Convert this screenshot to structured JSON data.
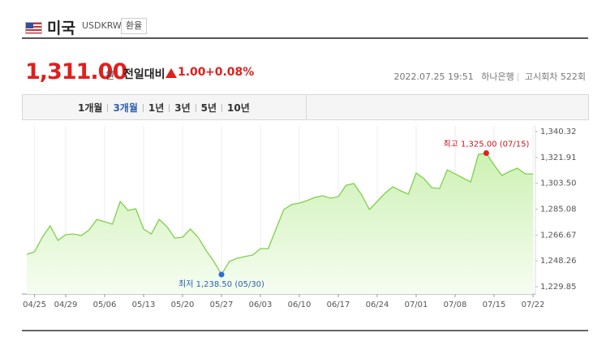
{
  "header": {
    "title": "미국",
    "code": "USDKRW",
    "button": "환율"
  },
  "quote": {
    "price": "1,311.00",
    "unit": "원",
    "change_label": "전일대비",
    "change": "1.00",
    "change_percent": "+0.08%",
    "timestamp": "2022.07.25 19:51",
    "bank": "하나은행",
    "round": "고시회차 522회"
  },
  "tabs": {
    "items": [
      "1개월",
      "3개월",
      "1년",
      "3년",
      "5년",
      "10년"
    ],
    "active": 1
  },
  "chart_data": {
    "type": "area",
    "color": "#7fd04c",
    "categories": [
      null,
      "04/25",
      null,
      null,
      null,
      "04/29",
      null,
      null,
      null,
      null,
      "05/06",
      null,
      null,
      null,
      null,
      "05/13",
      null,
      null,
      null,
      null,
      "05/20",
      null,
      null,
      null,
      null,
      "05/27",
      null,
      null,
      null,
      null,
      "06/03",
      null,
      null,
      null,
      null,
      "06/10",
      null,
      null,
      null,
      null,
      "06/17",
      null,
      null,
      null,
      null,
      "06/24",
      null,
      null,
      null,
      null,
      "07/01",
      null,
      null,
      null,
      null,
      "07/08",
      null,
      null,
      null,
      null,
      "07/15",
      null,
      null,
      null,
      null,
      "07/22"
    ],
    "values": [
      1252.9,
      1254.7,
      1265.1,
      1273.2,
      1262.8,
      1266.9,
      1267.4,
      1266.3,
      1270.3,
      1277.8,
      1276.1,
      1274.4,
      1290.6,
      1284.2,
      1285.4,
      1270.9,
      1267.4,
      1277.8,
      1272.6,
      1264.5,
      1265.1,
      1270.9,
      1265.1,
      1255.9,
      1248.0,
      1238.5,
      1247.8,
      1250.1,
      1251.3,
      1252.4,
      1257.0,
      1257.0,
      1270.9,
      1284.8,
      1288.3,
      1289.4,
      1291.2,
      1293.5,
      1294.6,
      1292.9,
      1294.0,
      1302.1,
      1303.3,
      1295.2,
      1284.8,
      1290.6,
      1296.4,
      1301.0,
      1298.1,
      1295.8,
      1310.8,
      1306.8,
      1300.4,
      1299.8,
      1313.1,
      1310.2,
      1307.3,
      1304.4,
      1324.1,
      1325.0,
      1316.6,
      1309.1,
      1312.0,
      1314.3,
      1310.2,
      1310.2
    ],
    "ylim": [
      1229.85,
      1340.32
    ],
    "yticks": [
      {
        "value": 1229.85,
        "label": "1,229.85"
      },
      {
        "value": 1248.26,
        "label": "1,248.26"
      },
      {
        "value": 1266.67,
        "label": "1,266.67"
      },
      {
        "value": 1285.08,
        "label": "1,285.08"
      },
      {
        "value": 1303.5,
        "label": "1,303.50"
      },
      {
        "value": 1321.91,
        "label": "1,321.91"
      },
      {
        "value": 1340.32,
        "label": "1,340.32"
      }
    ],
    "high_label": "최고 1,325.00 (07/15)",
    "low_label": "최저 1,238.50 (05/30)",
    "grid": true
  }
}
